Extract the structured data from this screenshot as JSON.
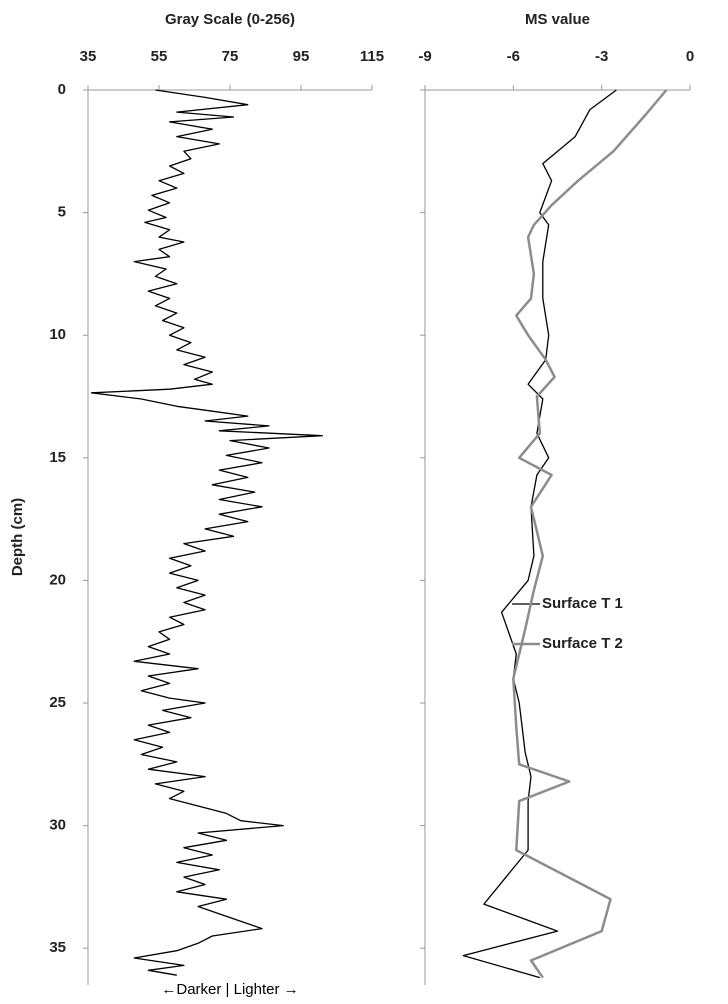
{
  "chart_data": [
    {
      "type": "line",
      "title": "Gray Scale (0-256)",
      "ylabel": "Depth (cm)",
      "annotation": "←Darker | Lighter →",
      "xlim": [
        35,
        115
      ],
      "xticks": [
        35,
        55,
        75,
        95,
        115
      ],
      "ylim": [
        0,
        36.5
      ],
      "yticks": [
        0,
        5,
        10,
        15,
        20,
        25,
        30,
        35
      ],
      "y_reversed": true,
      "ytick_labels": true,
      "series": [
        {
          "color": "#000000",
          "y": [
            0,
            0.3,
            0.6,
            0.9,
            1.1,
            1.3,
            1.6,
            1.9,
            2.2,
            2.5,
            2.8,
            3.1,
            3.4,
            3.7,
            4.0,
            4.3,
            4.6,
            4.9,
            5.2,
            5.4,
            5.7,
            6.0,
            6.2,
            6.5,
            6.8,
            7.0,
            7.3,
            7.6,
            7.9,
            8.2,
            8.5,
            8.8,
            9.1,
            9.4,
            9.7,
            10.0,
            10.3,
            10.6,
            10.9,
            11.2,
            11.5,
            11.8,
            12.0,
            12.2,
            12.35,
            12.6,
            12.9,
            13.1,
            13.3,
            13.5,
            13.7,
            13.9,
            14.1,
            14.3,
            14.6,
            14.9,
            15.2,
            15.5,
            15.8,
            16.1,
            16.4,
            16.7,
            17.0,
            17.3,
            17.6,
            17.9,
            18.2,
            18.5,
            18.8,
            19.1,
            19.4,
            19.7,
            20.0,
            20.3,
            20.6,
            20.9,
            21.2,
            21.5,
            21.8,
            22.1,
            22.4,
            22.7,
            23.0,
            23.3,
            23.6,
            23.9,
            24.2,
            24.5,
            24.8,
            25.0,
            25.3,
            25.6,
            25.9,
            26.2,
            26.5,
            26.8,
            27.1,
            27.4,
            27.7,
            28.0,
            28.3,
            28.6,
            28.9,
            29.2,
            29.5,
            29.8,
            30.0,
            30.3,
            30.6,
            30.9,
            31.2,
            31.5,
            31.8,
            32.1,
            32.4,
            32.7,
            33.0,
            33.3,
            33.6,
            33.9,
            34.2,
            34.5,
            34.8,
            35.1,
            35.4,
            35.7,
            35.9,
            36.1
          ],
          "values": [
            54,
            68,
            80,
            60,
            76,
            58,
            70,
            60,
            72,
            62,
            64,
            58,
            62,
            55,
            60,
            53,
            58,
            52,
            57,
            51,
            58,
            55,
            62,
            55,
            58,
            48,
            57,
            54,
            60,
            52,
            58,
            54,
            60,
            56,
            62,
            58,
            64,
            60,
            68,
            62,
            70,
            65,
            70,
            58,
            36,
            50,
            60,
            70,
            80,
            68,
            86,
            72,
            101,
            75,
            86,
            74,
            84,
            72,
            80,
            70,
            82,
            72,
            84,
            72,
            80,
            68,
            76,
            62,
            68,
            58,
            64,
            58,
            66,
            60,
            68,
            62,
            68,
            58,
            62,
            55,
            58,
            52,
            58,
            48,
            66,
            52,
            58,
            50,
            58,
            68,
            56,
            64,
            52,
            58,
            48,
            56,
            50,
            60,
            52,
            68,
            54,
            62,
            58,
            66,
            74,
            78,
            90,
            66,
            74,
            62,
            70,
            60,
            72,
            62,
            68,
            60,
            74,
            66,
            72,
            78,
            84,
            70,
            66,
            60,
            48,
            62,
            52,
            60
          ]
        }
      ]
    },
    {
      "type": "line",
      "title": "MS value",
      "xlim": [
        -9,
        0
      ],
      "xticks": [
        -9,
        -6,
        -3,
        0
      ],
      "ylim": [
        0,
        36.5
      ],
      "yticks": [
        0,
        5,
        10,
        15,
        20,
        25,
        30,
        35
      ],
      "y_reversed": true,
      "ytick_labels": false,
      "legend": "right",
      "series": [
        {
          "name": "Surface T 1",
          "color": "#000000",
          "y": [
            0,
            0.8,
            1.9,
            3.0,
            3.7,
            5.0,
            5.5,
            7.0,
            8.5,
            10.0,
            11.0,
            12.0,
            12.6,
            14.0,
            15.0,
            15.7,
            17.0,
            19.0,
            20.0,
            21.3,
            23.0,
            24.0,
            25.0,
            26.0,
            27.0,
            28.0,
            29.0,
            31.0,
            33.2,
            34.3,
            35.3,
            36.2
          ],
          "values": [
            -2.5,
            -3.4,
            -3.9,
            -5.0,
            -4.7,
            -5.1,
            -4.8,
            -5.0,
            -5.0,
            -4.8,
            -4.9,
            -5.5,
            -5.0,
            -5.2,
            -4.8,
            -5.2,
            -5.4,
            -5.3,
            -5.5,
            -6.4,
            -5.9,
            -6.0,
            -5.8,
            -5.7,
            -5.6,
            -5.4,
            -5.5,
            -5.5,
            -7.0,
            -4.5,
            -7.7,
            -5.1
          ]
        },
        {
          "name": "Surface T 2",
          "color": "#8c8c8c",
          "y": [
            0,
            1.0,
            2.5,
            3.7,
            4.7,
            5.5,
            6.0,
            7.5,
            8.5,
            9.2,
            10.0,
            11.0,
            11.7,
            12.5,
            14.0,
            15.0,
            15.7,
            17.0,
            19.0,
            20.4,
            22.0,
            24.0,
            26.0,
            27.5,
            28.2,
            29.0,
            31.0,
            33.0,
            34.3,
            35.5,
            36.2
          ],
          "values": [
            -0.8,
            -1.5,
            -2.6,
            -3.8,
            -4.7,
            -5.3,
            -5.5,
            -5.3,
            -5.4,
            -5.9,
            -5.5,
            -4.9,
            -4.6,
            -5.2,
            -5.1,
            -5.8,
            -4.7,
            -5.4,
            -5.0,
            -5.3,
            -5.6,
            -6.0,
            -5.9,
            -5.8,
            -4.1,
            -5.8,
            -5.9,
            -2.7,
            -3.0,
            -5.4,
            -5.0
          ]
        }
      ]
    }
  ]
}
